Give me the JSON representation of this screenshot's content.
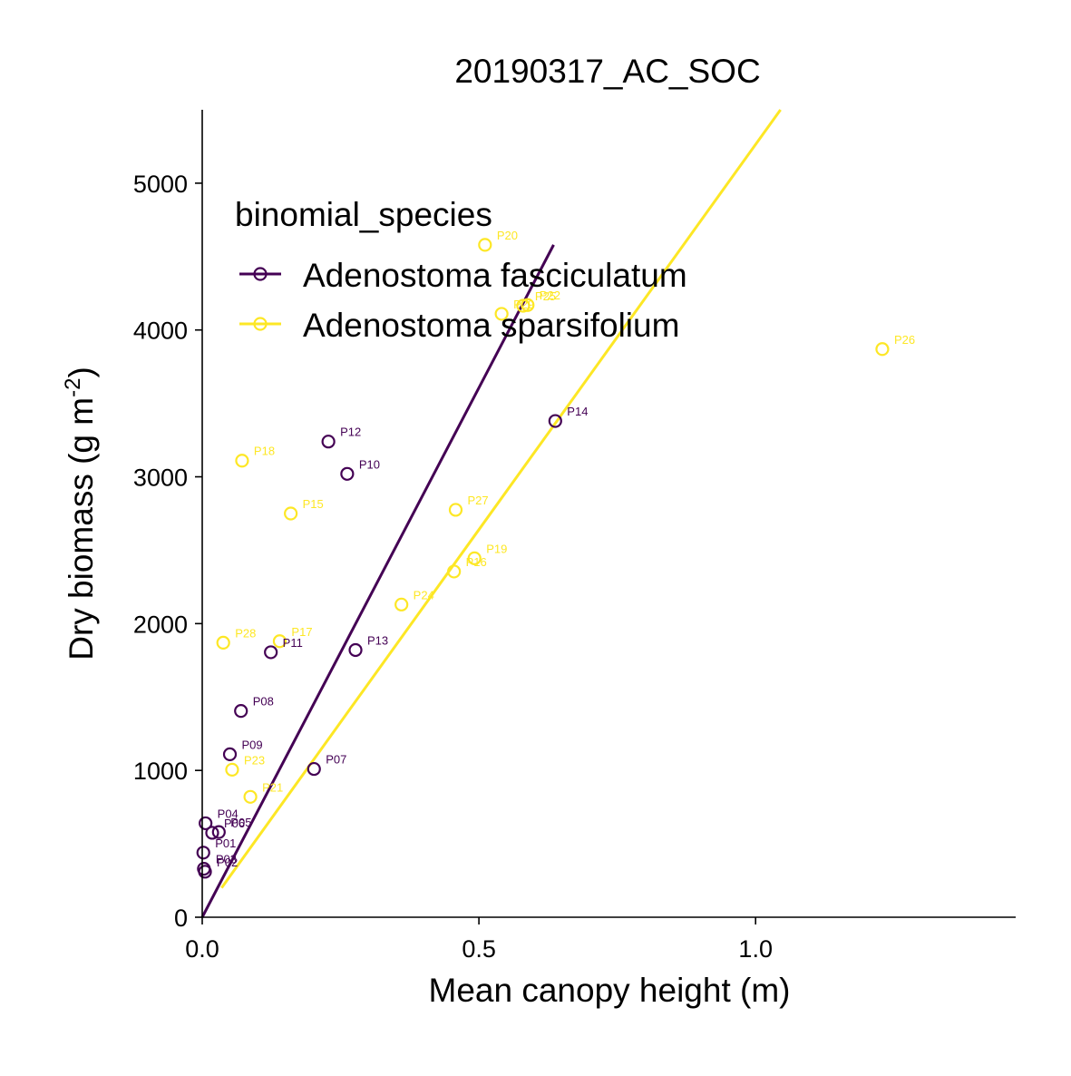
{
  "chart_data": {
    "type": "scatter",
    "title": "20190317_AC_SOC",
    "xlabel": "Mean canopy height (m)",
    "ylabel_main": "Dry biomass (g m",
    "ylabel_sup": "-2",
    "ylabel_close": ")",
    "xlim": [
      0,
      1.47
    ],
    "ylim": [
      0,
      5500
    ],
    "x_ticks": [
      {
        "value": 0,
        "label": "0.0"
      },
      {
        "value": 0.5,
        "label": "0.5"
      },
      {
        "value": 1.0,
        "label": "1.0"
      }
    ],
    "y_ticks": [
      {
        "value": 0,
        "label": "0"
      },
      {
        "value": 1000,
        "label": "1000"
      },
      {
        "value": 2000,
        "label": "2000"
      },
      {
        "value": 3000,
        "label": "3000"
      },
      {
        "value": 4000,
        "label": "4000"
      },
      {
        "value": 5000,
        "label": "5000"
      }
    ],
    "grid": false,
    "legend": {
      "title": "binomial_species",
      "placement": "top-left inside"
    },
    "series": [
      {
        "name": "Adenostoma fasciculatum",
        "color": "#440154",
        "fit_line": {
          "x": [
            0.0,
            0.635
          ],
          "y": [
            0,
            4580
          ]
        },
        "points": [
          {
            "label": "P01",
            "x": 0.002,
            "y": 440
          },
          {
            "label": "P02",
            "x": 0.005,
            "y": 310
          },
          {
            "label": "P03",
            "x": 0.003,
            "y": 330
          },
          {
            "label": "P04",
            "x": 0.006,
            "y": 640
          },
          {
            "label": "P05",
            "x": 0.03,
            "y": 580
          },
          {
            "label": "P06",
            "x": 0.018,
            "y": 575
          },
          {
            "label": "P07",
            "x": 0.202,
            "y": 1010
          },
          {
            "label": "P08",
            "x": 0.07,
            "y": 1405
          },
          {
            "label": "P09",
            "x": 0.05,
            "y": 1110
          },
          {
            "label": "P10",
            "x": 0.262,
            "y": 3020
          },
          {
            "label": "P11",
            "x": 0.124,
            "y": 1805
          },
          {
            "label": "P12",
            "x": 0.228,
            "y": 3240
          },
          {
            "label": "P13",
            "x": 0.277,
            "y": 1820
          },
          {
            "label": "P14",
            "x": 0.638,
            "y": 3380
          }
        ]
      },
      {
        "name": "Adenostoma sparsifolium",
        "color": "#FDE725",
        "fit_line": {
          "x": [
            0.035,
            1.045
          ],
          "y": [
            200,
            5500
          ]
        },
        "points": [
          {
            "label": "P15",
            "x": 0.16,
            "y": 2750
          },
          {
            "label": "P16",
            "x": 0.455,
            "y": 2355
          },
          {
            "label": "P17",
            "x": 0.14,
            "y": 1880
          },
          {
            "label": "P18",
            "x": 0.072,
            "y": 3110
          },
          {
            "label": "P19",
            "x": 0.492,
            "y": 2445
          },
          {
            "label": "P20",
            "x": 0.511,
            "y": 4580
          },
          {
            "label": "P21",
            "x": 0.087,
            "y": 820
          },
          {
            "label": "P22",
            "x": 0.588,
            "y": 4170
          },
          {
            "label": "P23",
            "x": 0.054,
            "y": 1005
          },
          {
            "label": "P24",
            "x": 0.36,
            "y": 2130
          },
          {
            "label": "P25",
            "x": 0.58,
            "y": 4165
          },
          {
            "label": "P26",
            "x": 1.229,
            "y": 3870
          },
          {
            "label": "P27",
            "x": 0.458,
            "y": 2775
          },
          {
            "label": "P28",
            "x": 0.038,
            "y": 1870
          },
          {
            "label": "P29",
            "x": 0.541,
            "y": 4110
          }
        ]
      }
    ]
  }
}
